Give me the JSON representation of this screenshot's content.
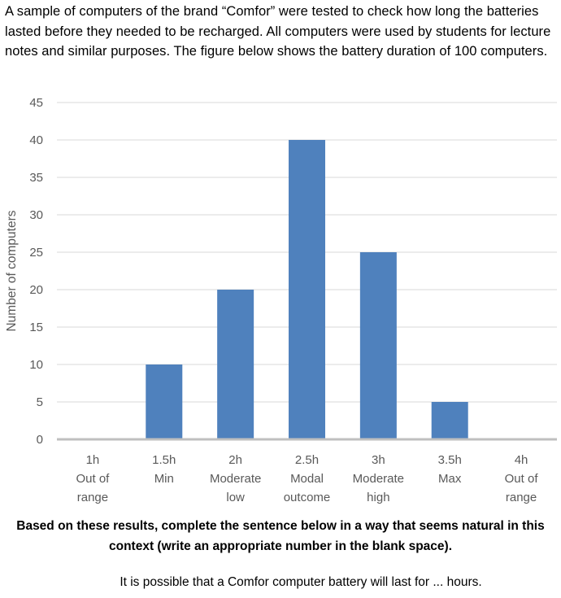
{
  "intro_text": "A sample of computers of the brand “Comfor” were tested to check how long the batteries lasted before they needed to be recharged. All computers were used by students for lecture notes and similar purposes. The figure below shows the battery duration of 100 computers.",
  "instruction_text": "Based on these results, complete the sentence below in a way that seems natural in this context (write an appropriate number in the blank space).",
  "sentence_text": "It is possible that a Comfor computer battery will last for ... hours.",
  "chart_data": {
    "type": "bar",
    "title": "",
    "xlabel": "",
    "ylabel": "Number of computers",
    "categories": [
      "1h",
      "1.5h",
      "2h",
      "2.5h",
      "3h",
      "3.5h",
      "4h"
    ],
    "category_sublabels": [
      [
        "Out of",
        "range"
      ],
      [
        "Min"
      ],
      [
        "Moderate",
        "low"
      ],
      [
        "Modal",
        "outcome"
      ],
      [
        "Moderate",
        "high"
      ],
      [
        "Max"
      ],
      [
        "Out of",
        "range"
      ]
    ],
    "values": [
      0,
      10,
      20,
      40,
      25,
      5,
      0
    ],
    "ylim": [
      0,
      45
    ],
    "yticks": [
      0,
      5,
      10,
      15,
      20,
      25,
      30,
      35,
      40,
      45
    ],
    "grid": true,
    "legend": "none",
    "colors": {
      "bar": "#4f81bd",
      "grid": "#d9d9d9",
      "axis": "#bfbfbf",
      "text": "#595959"
    }
  }
}
